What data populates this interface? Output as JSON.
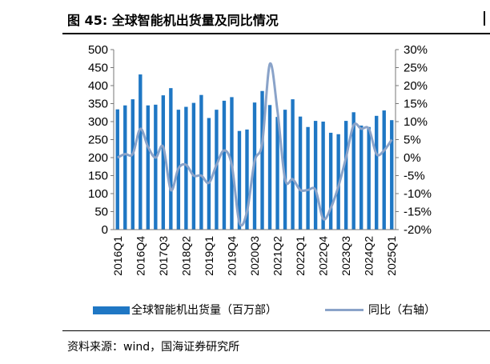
{
  "header": {
    "title": "图 45:  全球智能机出货量及同比情况"
  },
  "source": {
    "text": "资料来源：wind，国海证券研究所"
  },
  "colors": {
    "bars": "#1f77c4",
    "line": "#8aa3c9",
    "rule": "#000000"
  },
  "chart_data": {
    "type": "bar",
    "categories": [
      "2016Q1",
      "2016Q2",
      "2016Q3",
      "2016Q4",
      "2017Q1",
      "2017Q2",
      "2017Q3",
      "2017Q4",
      "2018Q1",
      "2018Q2",
      "2018Q3",
      "2018Q4",
      "2019Q1",
      "2019Q2",
      "2019Q3",
      "2019Q4",
      "2020Q1",
      "2020Q2",
      "2020Q3",
      "2020Q4",
      "2021Q1",
      "2021Q2",
      "2021Q3",
      "2021Q4",
      "2022Q1",
      "2022Q2",
      "2022Q3",
      "2022Q4",
      "2023Q1",
      "2023Q2",
      "2023Q3",
      "2023Q4",
      "2024Q1",
      "2024Q2",
      "2024Q3",
      "2024Q4",
      "2025Q1"
    ],
    "x_tick_labels": [
      "2016Q1",
      "2016Q4",
      "2017Q3",
      "2018Q2",
      "2019Q1",
      "2019Q4",
      "2020Q3",
      "2021Q2",
      "2022Q1",
      "2022Q4",
      "2023Q3",
      "2024Q2",
      "2025Q1"
    ],
    "series": [
      {
        "name": "全球智能机出货量（百万部）",
        "type": "bar",
        "axis": "left",
        "values": [
          334,
          345,
          362,
          431,
          345,
          347,
          373,
          393,
          333,
          341,
          352,
          374,
          310,
          333,
          358,
          368,
          274,
          278,
          353,
          385,
          346,
          313,
          333,
          362,
          314,
          285,
          302,
          300,
          269,
          265,
          302,
          326,
          289,
          285,
          316,
          331,
          304
        ]
      },
      {
        "name": "同比（右轴）",
        "type": "line",
        "axis": "right",
        "values": [
          0,
          1,
          1,
          8,
          3,
          0,
          3,
          -9,
          -3,
          -2,
          -5,
          -5,
          -7,
          -2,
          2,
          -2,
          -18,
          -15,
          -1,
          4,
          26,
          13,
          -6,
          -6,
          -9,
          -9,
          -9,
          -17,
          -14,
          -8,
          0,
          9,
          8,
          8,
          1,
          2,
          5
        ]
      }
    ],
    "y_left": {
      "min": 0,
      "max": 500,
      "step": 50,
      "ticks": [
        "0",
        "50",
        "100",
        "150",
        "200",
        "250",
        "300",
        "350",
        "400",
        "450",
        "500"
      ]
    },
    "y_right": {
      "min": -20,
      "max": 30,
      "step": 5,
      "ticks": [
        "-20%",
        "-15%",
        "-10%",
        "-5%",
        "0%",
        "5%",
        "10%",
        "15%",
        "20%",
        "25%",
        "30%"
      ]
    },
    "grid": false,
    "legend_position": "bottom"
  }
}
